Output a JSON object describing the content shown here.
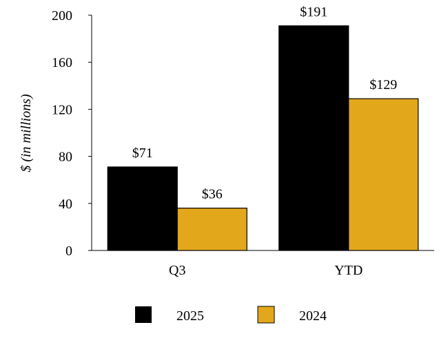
{
  "chart_data": {
    "type": "bar",
    "categories": [
      "Q3",
      "YTD"
    ],
    "series": [
      {
        "name": "2025",
        "values": [
          71,
          191
        ],
        "labels": [
          "$71",
          "$191"
        ],
        "color": "#000000"
      },
      {
        "name": "2024",
        "values": [
          36,
          129
        ],
        "labels": [
          "$36",
          "$129"
        ],
        "color": "#E3A71B"
      }
    ],
    "ylabel": "$ (in millions)",
    "xlabel": "",
    "ylim": [
      0,
      200
    ],
    "yticks": [
      0,
      40,
      80,
      120,
      160,
      200
    ],
    "grid": false,
    "legend_position": "bottom"
  }
}
